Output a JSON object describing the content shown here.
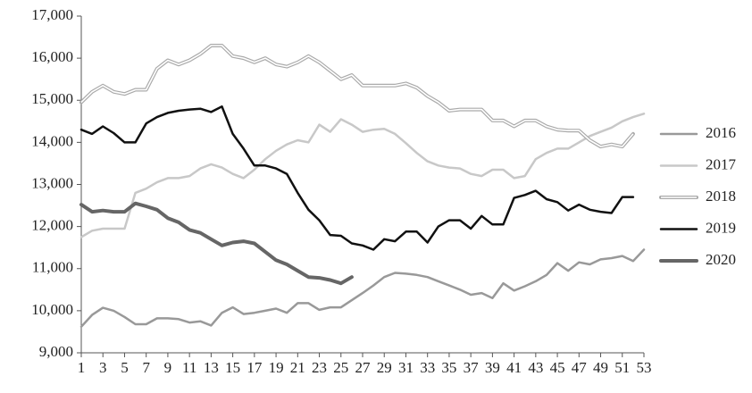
{
  "chart_data": {
    "type": "line",
    "x": [
      1,
      2,
      3,
      4,
      5,
      6,
      7,
      8,
      9,
      10,
      11,
      12,
      13,
      14,
      15,
      16,
      17,
      18,
      19,
      20,
      21,
      22,
      23,
      24,
      25,
      26,
      27,
      28,
      29,
      30,
      31,
      32,
      33,
      34,
      35,
      36,
      37,
      38,
      39,
      40,
      41,
      42,
      43,
      44,
      45,
      46,
      47,
      48,
      49,
      50,
      51,
      52,
      53
    ],
    "xlim": [
      1,
      53
    ],
    "xticks": [
      1,
      3,
      5,
      7,
      9,
      11,
      13,
      15,
      17,
      19,
      21,
      23,
      25,
      27,
      29,
      31,
      33,
      35,
      37,
      39,
      41,
      43,
      45,
      47,
      49,
      51,
      53
    ],
    "ylim": [
      9000,
      17000
    ],
    "yticks": [
      {
        "value": 9000,
        "label": "9,000"
      },
      {
        "value": 10000,
        "label": "10,000"
      },
      {
        "value": 11000,
        "label": "11,000"
      },
      {
        "value": 12000,
        "label": "12,000"
      },
      {
        "value": 13000,
        "label": "13,000"
      },
      {
        "value": 14000,
        "label": "14,000"
      },
      {
        "value": 15000,
        "label": "15,000"
      },
      {
        "value": 16000,
        "label": "16,000"
      },
      {
        "value": 17000,
        "label": "17,000"
      }
    ],
    "legend": "right",
    "series": [
      {
        "name": "2016",
        "color": "#999999",
        "width": 2.5,
        "values": [
          9620,
          9900,
          10070,
          10000,
          9850,
          9680,
          9680,
          9820,
          9820,
          9800,
          9720,
          9750,
          9650,
          9950,
          10080,
          9920,
          9950,
          10000,
          10050,
          9950,
          10180,
          10180,
          10020,
          10080,
          10080,
          10250,
          10420,
          10600,
          10800,
          10900,
          10880,
          10850,
          10800,
          10700,
          10600,
          10500,
          10380,
          10420,
          10300,
          10650,
          10480,
          10580,
          10700,
          10850,
          11130,
          10950,
          11150,
          11100,
          11220,
          11250,
          11300,
          11180,
          11450
        ]
      },
      {
        "name": "2017",
        "color": "#c8c8c8",
        "width": 2.5,
        "values": [
          11750,
          11900,
          11950,
          11950,
          11950,
          12800,
          12900,
          13050,
          13150,
          13150,
          13200,
          13380,
          13480,
          13400,
          13250,
          13150,
          13350,
          13600,
          13800,
          13950,
          14050,
          14000,
          14420,
          14250,
          14550,
          14420,
          14250,
          14300,
          14320,
          14200,
          13980,
          13750,
          13550,
          13450,
          13400,
          13380,
          13250,
          13200,
          13350,
          13350,
          13150,
          13200,
          13600,
          13750,
          13850,
          13850,
          14000,
          14150,
          14250,
          14350,
          14500,
          14600,
          14680
        ]
      },
      {
        "name": "2018",
        "color": "#aaaaaa",
        "width": 4,
        "line_style": "double",
        "values": [
          14950,
          15200,
          15350,
          15200,
          15150,
          15250,
          15250,
          15750,
          15950,
          15850,
          15950,
          16100,
          16300,
          16300,
          16050,
          16000,
          15900,
          16000,
          15850,
          15800,
          15900,
          16050,
          15900,
          15700,
          15500,
          15600,
          15350,
          15350,
          15350,
          15350,
          15400,
          15300,
          15100,
          14950,
          14750,
          14780,
          14780,
          14780,
          14520,
          14520,
          14380,
          14520,
          14520,
          14380,
          14300,
          14280,
          14280,
          14050,
          13900,
          13950,
          13900,
          14200,
          null
        ]
      },
      {
        "name": "2019",
        "color": "#111111",
        "width": 2.5,
        "values": [
          14300,
          14200,
          14380,
          14220,
          14000,
          14000,
          14450,
          14600,
          14700,
          14750,
          14780,
          14800,
          14720,
          14850,
          14200,
          13850,
          13450,
          13450,
          13380,
          13250,
          12800,
          12400,
          12150,
          11800,
          11780,
          11600,
          11550,
          11450,
          11700,
          11650,
          11880,
          11880,
          11620,
          12000,
          12150,
          12150,
          11950,
          12250,
          12050,
          12050,
          12680,
          12750,
          12850,
          12650,
          12580,
          12380,
          12520,
          12400,
          12350,
          12320,
          12700,
          12700,
          null
        ]
      },
      {
        "name": "2020",
        "color": "#666666",
        "width": 4,
        "values": [
          12520,
          12350,
          12380,
          12350,
          12350,
          12550,
          12480,
          12400,
          12200,
          12100,
          11920,
          11850,
          11700,
          11550,
          11620,
          11650,
          11600,
          11400,
          11200,
          11100,
          10950,
          10800,
          10780,
          10730,
          10650,
          10800,
          null,
          null,
          null,
          null,
          null,
          null,
          null,
          null,
          null,
          null,
          null,
          null,
          null,
          null,
          null,
          null,
          null,
          null,
          null,
          null,
          null,
          null,
          null,
          null,
          null,
          null,
          null
        ]
      }
    ]
  }
}
